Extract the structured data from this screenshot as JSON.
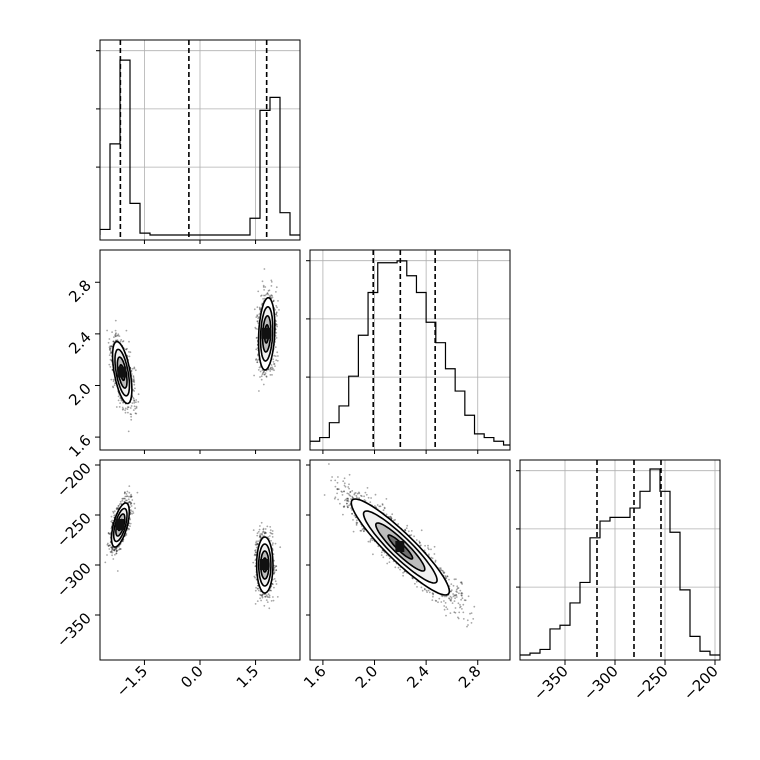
{
  "chart_data": {
    "type": "corner",
    "title": "",
    "parameters": [
      {
        "index": 0,
        "range": [
          -2.7,
          2.7
        ],
        "ticks": [
          -1.5,
          0.0,
          1.5
        ],
        "tick_labels": [
          "−1.5",
          "0.0",
          "1.5"
        ]
      },
      {
        "index": 1,
        "range": [
          1.5,
          3.05
        ],
        "ticks": [
          1.6,
          2.0,
          2.4,
          2.8
        ],
        "tick_labels": [
          "1.6",
          "2.0",
          "2.4",
          "2.8"
        ]
      },
      {
        "index": 2,
        "range": [
          -395,
          -195
        ],
        "ticks": [
          -350,
          -300,
          -250,
          -200
        ],
        "tick_labels": [
          "−350",
          "−300",
          "−250",
          "−200"
        ]
      }
    ],
    "histograms": [
      {
        "param": 0,
        "bin_edges": [
          -2.7,
          -2.43,
          -2.16,
          -1.89,
          -1.62,
          -1.35,
          1.35,
          1.62,
          1.89,
          2.16,
          2.43,
          2.7
        ],
        "counts": [
          0.03,
          0.49,
          0.94,
          0.17,
          0.01,
          0.0,
          0.09,
          0.67,
          0.74,
          0.12,
          0.0
        ],
        "quantiles": [
          -2.15,
          -0.3,
          1.8
        ]
      },
      {
        "param": 1,
        "bin_edges": [
          1.5,
          1.575,
          1.65,
          1.725,
          1.8,
          1.875,
          1.95,
          2.025,
          2.1,
          2.175,
          2.25,
          2.325,
          2.4,
          2.475,
          2.55,
          2.625,
          2.7,
          2.775,
          2.85,
          2.925,
          3.0,
          3.05
        ],
        "counts": [
          0.02,
          0.04,
          0.12,
          0.21,
          0.37,
          0.59,
          0.82,
          0.98,
          0.98,
          0.99,
          0.91,
          0.82,
          0.66,
          0.55,
          0.41,
          0.29,
          0.16,
          0.06,
          0.04,
          0.02,
          0.0
        ],
        "quantiles": [
          1.99,
          2.2,
          2.47
        ]
      },
      {
        "param": 2,
        "bin_edges": [
          -395,
          -385,
          -375,
          -365,
          -355,
          -345,
          -335,
          -325,
          -315,
          -305,
          -295,
          -285,
          -275,
          -265,
          -255,
          -245,
          -235,
          -225,
          -215,
          -205,
          -195
        ],
        "counts": [
          0.0,
          0.01,
          0.03,
          0.14,
          0.16,
          0.28,
          0.39,
          0.63,
          0.72,
          0.74,
          0.74,
          0.79,
          0.88,
          1.0,
          0.88,
          0.66,
          0.35,
          0.1,
          0.02,
          0.0
        ],
        "quantiles": [
          -318,
          -281,
          -254
        ]
      }
    ],
    "pairs": [
      {
        "x_param": 0,
        "y_param": 1,
        "modes": [
          {
            "center": [
              -2.1,
              2.1
            ],
            "sigma": [
              0.13,
              0.12
            ],
            "rho": -0.55,
            "weight": 0.55
          },
          {
            "center": [
              1.8,
              2.4
            ],
            "sigma": [
              0.11,
              0.14
            ],
            "rho": 0.2,
            "weight": 0.45
          }
        ]
      },
      {
        "x_param": 0,
        "y_param": 2,
        "modes": [
          {
            "center": [
              -2.15,
              -260
            ],
            "sigma": [
              0.12,
              11
            ],
            "rho": 0.6,
            "weight": 0.55
          },
          {
            "center": [
              1.75,
              -300
            ],
            "sigma": [
              0.11,
              14
            ],
            "rho": 0.0,
            "weight": 0.45
          }
        ]
      },
      {
        "x_param": 1,
        "y_param": 2,
        "modes": [
          {
            "center": [
              2.2,
              -282
            ],
            "sigma": [
              0.19,
              24
            ],
            "rho": -0.92,
            "weight": 1.0
          }
        ]
      }
    ],
    "contour_levels_sigma": [
      0.5,
      1.0,
      1.5,
      2.0
    ]
  }
}
